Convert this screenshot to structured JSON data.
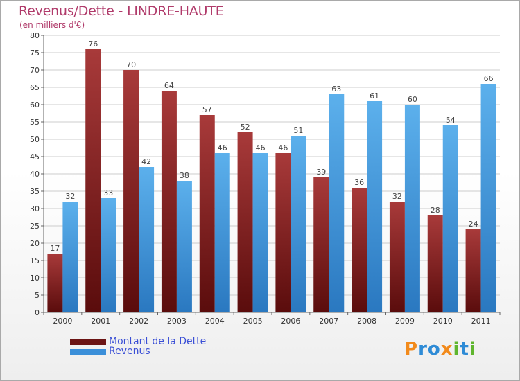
{
  "header": {
    "title": "Revenus/Dette - LINDRE-HAUTE",
    "subtitle": "(en milliers d'€)"
  },
  "legend": {
    "debt_label": "Montant de la Dette",
    "revenue_label": "Revenus"
  },
  "logo": {
    "text": "Proxiti",
    "letters": [
      "P",
      "r",
      "o",
      "x",
      "i",
      "t",
      "i"
    ],
    "colors": [
      "#f28a1b",
      "#2e8bd6",
      "#2e8bd6",
      "#f28a1b",
      "#5fb52e",
      "#2e8bd6",
      "#5fb52e"
    ]
  },
  "colors": {
    "debt": "#7a1a1a",
    "debt_light": "#a83a3a",
    "revenue": "#3b8fd9",
    "revenue_light": "#5cb0ec",
    "grid": "#cccccc"
  },
  "chart_data": {
    "type": "bar",
    "categories": [
      "2000",
      "2001",
      "2002",
      "2003",
      "2004",
      "2005",
      "2006",
      "2007",
      "2008",
      "2009",
      "2010",
      "2011"
    ],
    "series": [
      {
        "name": "Montant de la Dette",
        "values": [
          17,
          76,
          70,
          64,
          57,
          52,
          46,
          39,
          36,
          32,
          28,
          24
        ]
      },
      {
        "name": "Revenus",
        "values": [
          32,
          33,
          42,
          38,
          46,
          46,
          51,
          63,
          61,
          60,
          54,
          66
        ]
      }
    ],
    "ylim": [
      0,
      80
    ],
    "yticks": [
      0,
      5,
      10,
      15,
      20,
      25,
      30,
      35,
      40,
      45,
      50,
      55,
      60,
      65,
      70,
      75,
      80
    ],
    "grid": true,
    "legend_position": "bottom-left"
  }
}
